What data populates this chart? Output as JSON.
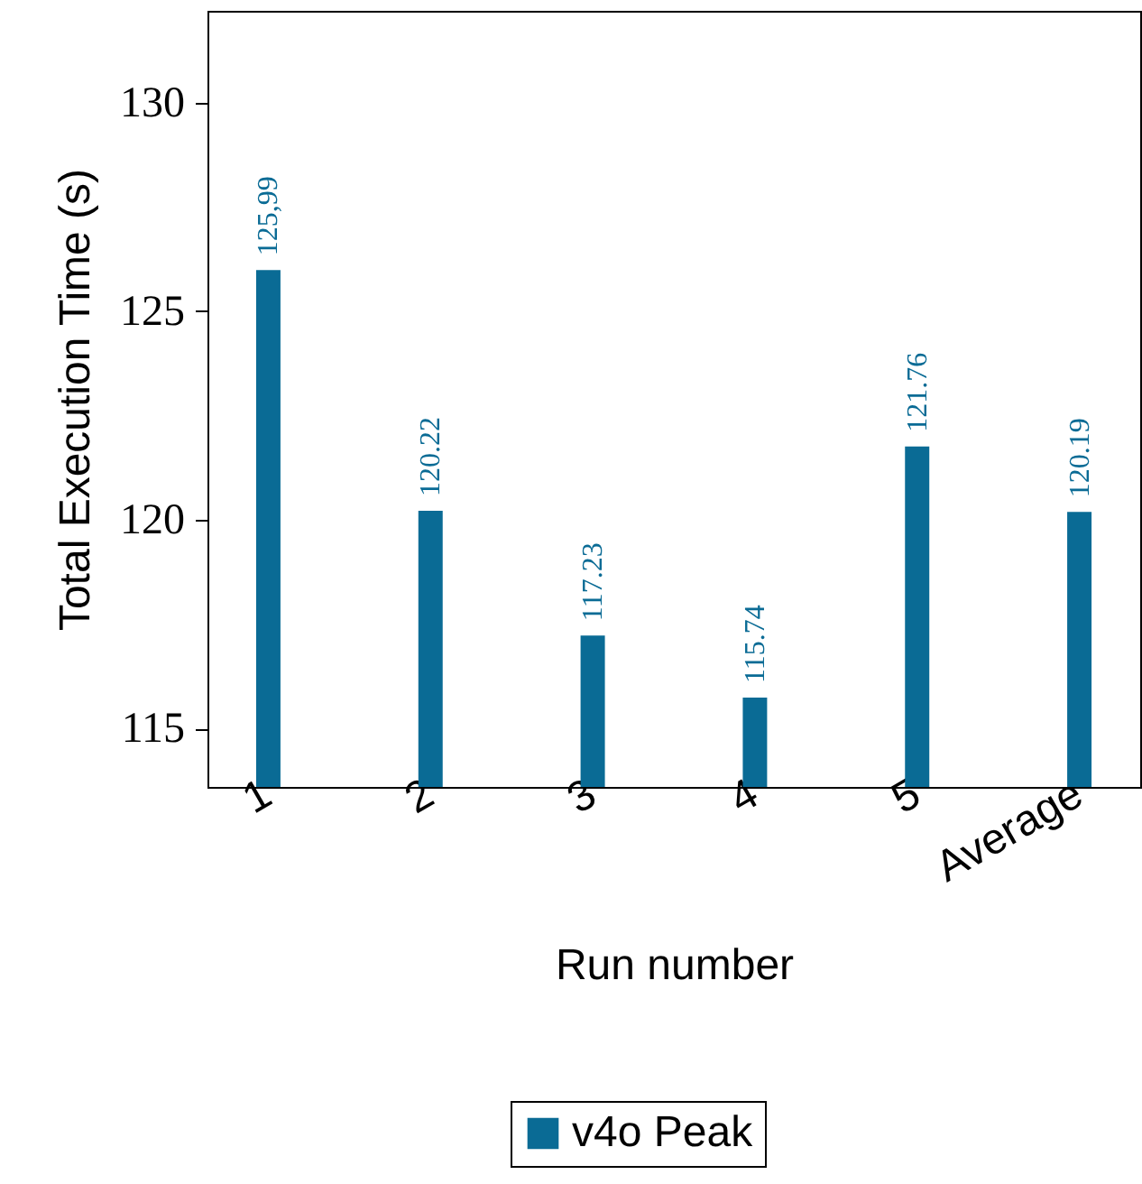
{
  "chart_data": {
    "type": "bar",
    "xlabel": "Run number",
    "ylabel": "Total Execution Time (s)",
    "categories": [
      "1",
      "2",
      "3",
      "4",
      "5",
      "Average"
    ],
    "series": [
      {
        "name": "v4o Peak",
        "color": "#0a6b95",
        "values": [
          125.99,
          120.22,
          117.23,
          115.74,
          121.76,
          120.19
        ],
        "value_labels": [
          "125,99",
          "120.22",
          "117.23",
          "115.74",
          "121.76",
          "120.19"
        ]
      }
    ],
    "ylim": [
      113.6,
      132.2
    ],
    "yticks": [
      115,
      120,
      125,
      130
    ],
    "legend": "bottom"
  }
}
